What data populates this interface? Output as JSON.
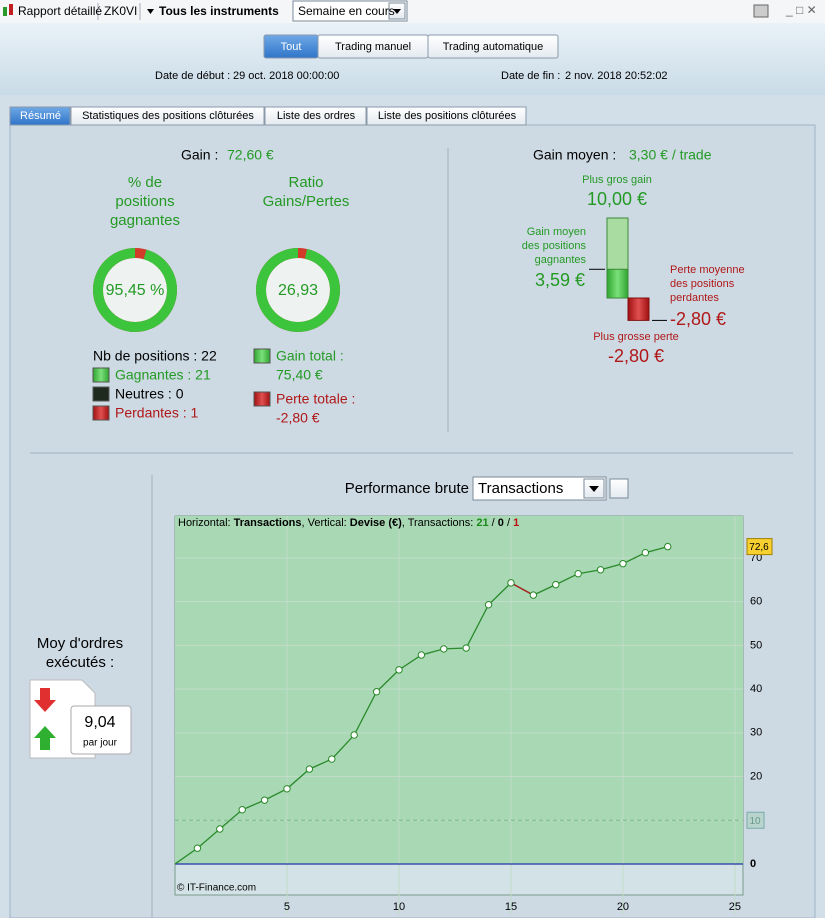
{
  "toolbar": {
    "report": "Rapport détaillé",
    "account": "ZK0VI",
    "instruments": "Tous les instruments",
    "period": "Semaine en cours"
  },
  "filters": [
    "Tout",
    "Trading manuel",
    "Trading automatique"
  ],
  "dates": {
    "start_label": "Date de début :",
    "start": "29 oct. 2018 00:00:00",
    "end_label": "Date de fin :",
    "end": "2 nov. 2018 20:52:02"
  },
  "tabs": [
    "Résumé",
    "Statistiques des positions clôturées",
    "Liste des ordres",
    "Liste des positions clôturées"
  ],
  "gain": {
    "label": "Gain :",
    "value": "72,60 €"
  },
  "win_pct": {
    "title": [
      "% de",
      "positions",
      "gagnantes"
    ],
    "value": "95,45 %",
    "share": 95.45
  },
  "ratio": {
    "title": [
      "Ratio",
      "Gains/Pertes"
    ],
    "value": "26,93",
    "share": 96.4
  },
  "positions": {
    "total": "Nb de positions : 22",
    "winners": "Gagnantes : 21",
    "neutral": "Neutres : 0",
    "losers": "Perdantes : 1"
  },
  "totals": {
    "gain_label": "Gain total :",
    "gain": "75,40 €",
    "loss_label": "Perte totale :",
    "loss": "-2,80 €"
  },
  "avg": {
    "label": "Gain moyen :",
    "value": "3,30 € / trade",
    "max_gain_label": "Plus gros gain",
    "max_gain": "10,00 €",
    "avg_gain_label": [
      "Gain moyen",
      "des positions",
      "gagnantes"
    ],
    "avg_gain": "3,59 €",
    "avg_loss_label": [
      "Perte moyenne",
      "des positions",
      "perdantes"
    ],
    "avg_loss": "-2,80 €",
    "max_loss_label": "Plus grosse perte",
    "max_loss": "-2,80 €",
    "bars": {
      "max_gain": 10,
      "avg_gain": 3.59,
      "avg_loss": -2.8
    }
  },
  "orders": {
    "label": [
      "Moy d'ordres",
      "exécutés :"
    ],
    "value": "9,04",
    "unit": "par jour"
  },
  "chart_data": {
    "type": "line",
    "title": "Performance brute",
    "selector": "Transactions",
    "info": [
      {
        "text": "Horizontal: "
      },
      {
        "text": "Transactions",
        "bold": true
      },
      {
        "text": ", Vertical: "
      },
      {
        "text": "Devise (€)",
        "bold": true
      },
      {
        "text": ", Transactions: "
      },
      {
        "text": "21",
        "bold": true,
        "color": "#1a8a1a"
      },
      {
        "text": " / "
      },
      {
        "text": "0",
        "bold": true
      },
      {
        "text": " / "
      },
      {
        "text": "1",
        "bold": true,
        "color": "#c01010"
      }
    ],
    "credit": "© IT-Finance.com",
    "x": [
      0,
      1,
      2,
      3,
      4,
      5,
      6,
      7,
      8,
      9,
      10,
      11,
      12,
      13,
      14,
      15,
      16,
      17,
      18,
      19,
      20,
      21,
      22
    ],
    "series": [
      {
        "name": "Transactions",
        "color": "#2a8a2a",
        "loss_color": "#b02020",
        "values": [
          0,
          3.6,
          8.0,
          12.4,
          14.6,
          17.2,
          21.7,
          24.0,
          29.5,
          39.4,
          44.4,
          47.8,
          49.2,
          49.4,
          59.3,
          64.3,
          61.5,
          63.9,
          66.4,
          67.3,
          68.7,
          71.2,
          72.6
        ]
      }
    ],
    "last_label": "72,6",
    "reference_line": 10,
    "xlim": [
      0,
      25.36
    ],
    "xticks": [
      5,
      10,
      15,
      20,
      25
    ],
    "ylim": [
      -7.1,
      79.6
    ],
    "yticks": [
      0,
      10,
      20,
      30,
      40,
      50,
      60,
      70
    ],
    "grid": true
  }
}
